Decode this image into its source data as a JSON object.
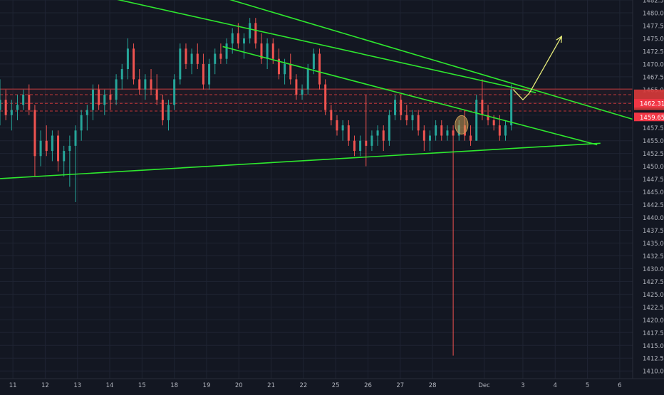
{
  "chart_data": {
    "type": "candlestick",
    "colors": {
      "background": "#131722",
      "grid": "#1f2433",
      "up": "#26a69a",
      "down": "#ef5350",
      "trendline": "#2ee82e",
      "arrow": "#e6eb7a",
      "axis_text": "#b2b5be",
      "marker": "#c89a55",
      "level_red": "#e03c3c"
    },
    "y_axis": {
      "position": "right",
      "ylim": [
        1408.5,
        1482.5
      ],
      "ticks": [
        "1410.00",
        "1412.50",
        "1415.00",
        "1417.50",
        "1420.00",
        "1422.50",
        "1425.00",
        "1427.50",
        "1430.00",
        "1432.50",
        "1435.00",
        "1437.50",
        "1440.00",
        "1442.50",
        "1445.00",
        "1447.50",
        "1450.00",
        "1452.50",
        "1455.00",
        "1457.50",
        "1460.00",
        "1462.50",
        "1465.00",
        "1467.50",
        "1470.00",
        "1472.50",
        "1475.00",
        "1477.50",
        "1480.00",
        "1482.50"
      ]
    },
    "x_axis": {
      "ticks": [
        {
          "label": "11",
          "day": 11
        },
        {
          "label": "12",
          "day": 12
        },
        {
          "label": "13",
          "day": 13
        },
        {
          "label": "14",
          "day": 14
        },
        {
          "label": "15",
          "day": 15
        },
        {
          "label": "18",
          "day": 16
        },
        {
          "label": "19",
          "day": 17
        },
        {
          "label": "20",
          "day": 18
        },
        {
          "label": "21",
          "day": 19
        },
        {
          "label": "22",
          "day": 20
        },
        {
          "label": "25",
          "day": 21
        },
        {
          "label": "26",
          "day": 22
        },
        {
          "label": "27",
          "day": 23
        },
        {
          "label": "28",
          "day": 24
        },
        {
          "label": "Dec",
          "day": 25.6
        },
        {
          "label": "3",
          "day": 26.8
        },
        {
          "label": "4",
          "day": 27.8
        },
        {
          "label": "5",
          "day": 28.8
        },
        {
          "label": "6",
          "day": 29.8
        }
      ],
      "xlim": [
        10.6,
        30.2
      ]
    },
    "price_labels": [
      {
        "value": "1462.31",
        "price": 1462.31,
        "color": "#f23645"
      },
      {
        "value": "1459.65",
        "price": 1459.65,
        "color": "#f23645"
      }
    ],
    "price_box": {
      "top": 1465.0,
      "bottom": 1461.0
    },
    "horizontal_levels": [
      {
        "price": 1465.1,
        "style": "solid"
      },
      {
        "price": 1464.0,
        "style": "dashed"
      },
      {
        "price": 1462.3,
        "style": "dashed"
      },
      {
        "price": 1460.8,
        "style": "dashed"
      }
    ],
    "trendlines": [
      {
        "from": [
          10.6,
          1487.7
        ],
        "to": [
          27.2,
          1464.4
        ]
      },
      {
        "from": [
          15.9,
          1486.0
        ],
        "to": [
          30.2,
          1459.2
        ]
      },
      {
        "from": [
          10.6,
          1447.6
        ],
        "to": [
          29.2,
          1454.5
        ]
      },
      {
        "from": [
          17.5,
          1473.4
        ],
        "to": [
          29.1,
          1454.2
        ]
      }
    ],
    "arrows": [
      {
        "points": [
          [
            26.5,
            1465.0
          ],
          [
            26.8,
            1463.0
          ],
          [
            27.0,
            1464.3
          ]
        ],
        "head": false
      },
      {
        "points": [
          [
            27.0,
            1464.3
          ],
          [
            28.0,
            1475.4
          ]
        ],
        "head": true
      }
    ],
    "marker": {
      "day": 24.9,
      "price": 1458.1
    },
    "candles": [
      {
        "d": 10.6,
        "o": 1461,
        "h": 1467,
        "l": 1458,
        "c": 1463
      },
      {
        "d": 10.78,
        "o": 1463,
        "h": 1465,
        "l": 1459,
        "c": 1460
      },
      {
        "d": 10.96,
        "o": 1460,
        "h": 1463,
        "l": 1457,
        "c": 1461
      },
      {
        "d": 11.14,
        "o": 1461,
        "h": 1464,
        "l": 1459,
        "c": 1462
      },
      {
        "d": 11.32,
        "o": 1462,
        "h": 1465,
        "l": 1461,
        "c": 1464
      },
      {
        "d": 11.5,
        "o": 1464,
        "h": 1466,
        "l": 1460,
        "c": 1461
      },
      {
        "d": 11.68,
        "o": 1461,
        "h": 1462,
        "l": 1448,
        "c": 1452
      },
      {
        "d": 11.86,
        "o": 1452,
        "h": 1457,
        "l": 1450,
        "c": 1455
      },
      {
        "d": 12.04,
        "o": 1455,
        "h": 1458,
        "l": 1452,
        "c": 1453
      },
      {
        "d": 12.22,
        "o": 1453,
        "h": 1457,
        "l": 1451,
        "c": 1456
      },
      {
        "d": 12.4,
        "o": 1456,
        "h": 1457,
        "l": 1449,
        "c": 1451
      },
      {
        "d": 12.58,
        "o": 1451,
        "h": 1454,
        "l": 1448,
        "c": 1453
      },
      {
        "d": 12.76,
        "o": 1453,
        "h": 1456,
        "l": 1446,
        "c": 1454
      },
      {
        "d": 12.94,
        "o": 1454,
        "h": 1458,
        "l": 1443,
        "c": 1457
      },
      {
        "d": 13.12,
        "o": 1457,
        "h": 1461,
        "l": 1455,
        "c": 1460
      },
      {
        "d": 13.3,
        "o": 1460,
        "h": 1462,
        "l": 1457,
        "c": 1461
      },
      {
        "d": 13.48,
        "o": 1461,
        "h": 1466,
        "l": 1459,
        "c": 1465
      },
      {
        "d": 13.66,
        "o": 1465,
        "h": 1466,
        "l": 1461,
        "c": 1462
      },
      {
        "d": 13.84,
        "o": 1462,
        "h": 1465,
        "l": 1460,
        "c": 1464
      },
      {
        "d": 14.02,
        "o": 1464,
        "h": 1465,
        "l": 1461,
        "c": 1463
      },
      {
        "d": 14.2,
        "o": 1463,
        "h": 1468,
        "l": 1462,
        "c": 1467
      },
      {
        "d": 14.38,
        "o": 1467,
        "h": 1470,
        "l": 1465,
        "c": 1469
      },
      {
        "d": 14.56,
        "o": 1469,
        "h": 1475,
        "l": 1467,
        "c": 1473
      },
      {
        "d": 14.74,
        "o": 1473,
        "h": 1474,
        "l": 1466,
        "c": 1467
      },
      {
        "d": 14.92,
        "o": 1467,
        "h": 1469,
        "l": 1464,
        "c": 1465
      },
      {
        "d": 15.1,
        "o": 1465,
        "h": 1468,
        "l": 1463,
        "c": 1467
      },
      {
        "d": 15.28,
        "o": 1467,
        "h": 1469,
        "l": 1464,
        "c": 1465
      },
      {
        "d": 15.46,
        "o": 1465,
        "h": 1468,
        "l": 1462,
        "c": 1463
      },
      {
        "d": 15.64,
        "o": 1463,
        "h": 1464,
        "l": 1458,
        "c": 1459
      },
      {
        "d": 15.82,
        "o": 1459,
        "h": 1463,
        "l": 1457,
        "c": 1462
      },
      {
        "d": 16.0,
        "o": 1462,
        "h": 1468,
        "l": 1461,
        "c": 1467
      },
      {
        "d": 16.18,
        "o": 1467,
        "h": 1474,
        "l": 1466,
        "c": 1473
      },
      {
        "d": 16.36,
        "o": 1473,
        "h": 1474,
        "l": 1469,
        "c": 1470
      },
      {
        "d": 16.54,
        "o": 1470,
        "h": 1473,
        "l": 1468,
        "c": 1472
      },
      {
        "d": 16.72,
        "o": 1472,
        "h": 1474,
        "l": 1469,
        "c": 1470
      },
      {
        "d": 16.9,
        "o": 1470,
        "h": 1472,
        "l": 1465,
        "c": 1466
      },
      {
        "d": 17.08,
        "o": 1466,
        "h": 1471,
        "l": 1465,
        "c": 1470
      },
      {
        "d": 17.26,
        "o": 1470,
        "h": 1473,
        "l": 1468,
        "c": 1472
      },
      {
        "d": 17.44,
        "o": 1472,
        "h": 1474,
        "l": 1470,
        "c": 1471
      },
      {
        "d": 17.62,
        "o": 1471,
        "h": 1475,
        "l": 1470,
        "c": 1474
      },
      {
        "d": 17.8,
        "o": 1474,
        "h": 1477,
        "l": 1472,
        "c": 1476
      },
      {
        "d": 17.98,
        "o": 1476,
        "h": 1478,
        "l": 1473,
        "c": 1474
      },
      {
        "d": 18.16,
        "o": 1474,
        "h": 1476,
        "l": 1471,
        "c": 1475
      },
      {
        "d": 18.34,
        "o": 1475,
        "h": 1479,
        "l": 1474,
        "c": 1478
      },
      {
        "d": 18.52,
        "o": 1478,
        "h": 1479,
        "l": 1473,
        "c": 1474
      },
      {
        "d": 18.7,
        "o": 1474,
        "h": 1476,
        "l": 1470,
        "c": 1471
      },
      {
        "d": 18.88,
        "o": 1471,
        "h": 1475,
        "l": 1469,
        "c": 1474
      },
      {
        "d": 19.06,
        "o": 1474,
        "h": 1475,
        "l": 1470,
        "c": 1471
      },
      {
        "d": 19.24,
        "o": 1471,
        "h": 1473,
        "l": 1467,
        "c": 1468
      },
      {
        "d": 19.42,
        "o": 1468,
        "h": 1471,
        "l": 1466,
        "c": 1470
      },
      {
        "d": 19.6,
        "o": 1470,
        "h": 1472,
        "l": 1466,
        "c": 1467
      },
      {
        "d": 19.78,
        "o": 1467,
        "h": 1468,
        "l": 1463,
        "c": 1464
      },
      {
        "d": 19.96,
        "o": 1464,
        "h": 1466,
        "l": 1463,
        "c": 1465
      },
      {
        "d": 20.14,
        "o": 1465,
        "h": 1470,
        "l": 1464,
        "c": 1469
      },
      {
        "d": 20.32,
        "o": 1469,
        "h": 1473,
        "l": 1468,
        "c": 1472
      },
      {
        "d": 20.5,
        "o": 1472,
        "h": 1473,
        "l": 1465,
        "c": 1466
      },
      {
        "d": 20.68,
        "o": 1466,
        "h": 1467,
        "l": 1460,
        "c": 1461
      },
      {
        "d": 20.86,
        "o": 1461,
        "h": 1462,
        "l": 1458,
        "c": 1459
      },
      {
        "d": 21.04,
        "o": 1459,
        "h": 1460,
        "l": 1456,
        "c": 1457
      },
      {
        "d": 21.22,
        "o": 1457,
        "h": 1459,
        "l": 1455,
        "c": 1458
      },
      {
        "d": 21.4,
        "o": 1458,
        "h": 1459,
        "l": 1454,
        "c": 1455
      },
      {
        "d": 21.58,
        "o": 1455,
        "h": 1456,
        "l": 1452,
        "c": 1453
      },
      {
        "d": 21.76,
        "o": 1453,
        "h": 1456,
        "l": 1452,
        "c": 1455
      },
      {
        "d": 21.94,
        "o": 1455,
        "h": 1464,
        "l": 1450,
        "c": 1454
      },
      {
        "d": 22.12,
        "o": 1454,
        "h": 1457,
        "l": 1453,
        "c": 1456
      },
      {
        "d": 22.3,
        "o": 1456,
        "h": 1458,
        "l": 1454,
        "c": 1457
      },
      {
        "d": 22.48,
        "o": 1457,
        "h": 1458,
        "l": 1453,
        "c": 1455
      },
      {
        "d": 22.66,
        "o": 1455,
        "h": 1461,
        "l": 1454,
        "c": 1460
      },
      {
        "d": 22.84,
        "o": 1460,
        "h": 1464,
        "l": 1459,
        "c": 1463
      },
      {
        "d": 23.02,
        "o": 1463,
        "h": 1464,
        "l": 1459,
        "c": 1460
      },
      {
        "d": 23.2,
        "o": 1460,
        "h": 1462,
        "l": 1458,
        "c": 1459
      },
      {
        "d": 23.38,
        "o": 1459,
        "h": 1461,
        "l": 1457,
        "c": 1460
      },
      {
        "d": 23.56,
        "o": 1460,
        "h": 1461,
        "l": 1456,
        "c": 1457
      },
      {
        "d": 23.74,
        "o": 1457,
        "h": 1458,
        "l": 1453,
        "c": 1455
      },
      {
        "d": 23.92,
        "o": 1455,
        "h": 1457,
        "l": 1453,
        "c": 1456
      },
      {
        "d": 24.1,
        "o": 1456,
        "h": 1459,
        "l": 1455,
        "c": 1458
      },
      {
        "d": 24.28,
        "o": 1458,
        "h": 1459,
        "l": 1455,
        "c": 1456
      },
      {
        "d": 24.46,
        "o": 1456,
        "h": 1458,
        "l": 1455,
        "c": 1457
      },
      {
        "d": 24.64,
        "o": 1457,
        "h": 1458,
        "l": 1413,
        "c": 1456
      },
      {
        "d": 24.82,
        "o": 1456,
        "h": 1459,
        "l": 1455,
        "c": 1458
      },
      {
        "d": 25.0,
        "o": 1458,
        "h": 1461,
        "l": 1455,
        "c": 1456
      },
      {
        "d": 25.18,
        "o": 1456,
        "h": 1458,
        "l": 1454,
        "c": 1455
      },
      {
        "d": 25.36,
        "o": 1455,
        "h": 1464,
        "l": 1455,
        "c": 1463
      },
      {
        "d": 25.54,
        "o": 1463,
        "h": 1467,
        "l": 1459,
        "c": 1460
      },
      {
        "d": 25.72,
        "o": 1460,
        "h": 1462,
        "l": 1458,
        "c": 1459
      },
      {
        "d": 25.9,
        "o": 1459,
        "h": 1460,
        "l": 1457,
        "c": 1458
      },
      {
        "d": 26.08,
        "o": 1458,
        "h": 1460,
        "l": 1455,
        "c": 1456
      },
      {
        "d": 26.26,
        "o": 1456,
        "h": 1459,
        "l": 1455,
        "c": 1458
      },
      {
        "d": 26.44,
        "o": 1458,
        "h": 1466,
        "l": 1457,
        "c": 1465
      }
    ]
  }
}
